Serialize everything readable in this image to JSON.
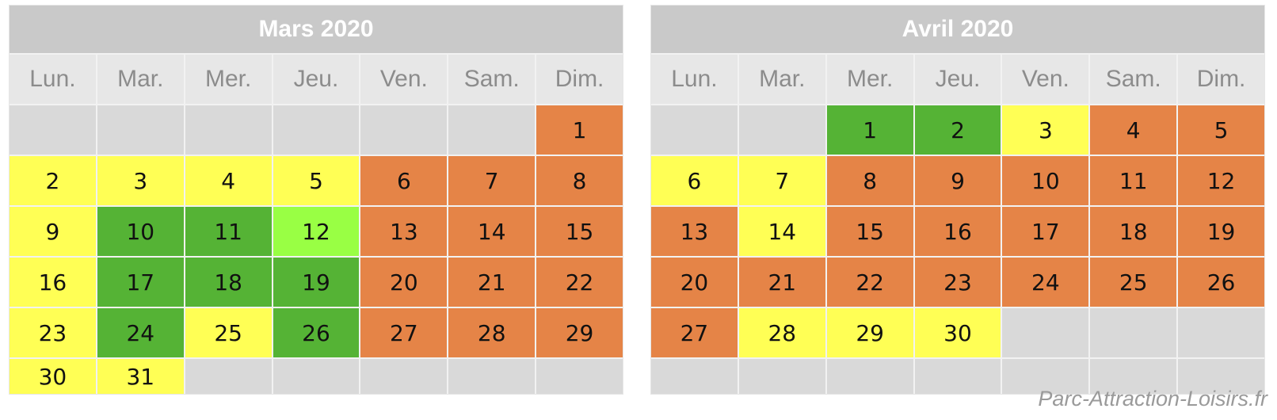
{
  "colors": {
    "empty": "#d9d9d9",
    "yellow": "#ffff55",
    "green": "#55b335",
    "light_green": "#99ff44",
    "orange": "#e58447"
  },
  "weekdays": [
    "Lun.",
    "Mar.",
    "Mer.",
    "Jeu.",
    "Ven.",
    "Sam.",
    "Dim."
  ],
  "months": [
    {
      "title": "Mars 2020",
      "offset": 6,
      "days": [
        "orange",
        "yellow",
        "yellow",
        "yellow",
        "yellow",
        "orange",
        "orange",
        "orange",
        "yellow",
        "green",
        "green",
        "light_green",
        "orange",
        "orange",
        "orange",
        "yellow",
        "green",
        "green",
        "green",
        "orange",
        "orange",
        "orange",
        "yellow",
        "green",
        "yellow",
        "green",
        "orange",
        "orange",
        "orange",
        "yellow",
        "yellow"
      ]
    },
    {
      "title": "Avril 2020",
      "offset": 2,
      "days": [
        "green",
        "green",
        "yellow",
        "orange",
        "orange",
        "yellow",
        "yellow",
        "orange",
        "orange",
        "orange",
        "orange",
        "orange",
        "orange",
        "yellow",
        "orange",
        "orange",
        "orange",
        "orange",
        "orange",
        "orange",
        "orange",
        "orange",
        "orange",
        "orange",
        "orange",
        "orange",
        "orange",
        "yellow",
        "yellow",
        "yellow"
      ]
    }
  ],
  "credit": "Parc-Attraction-Loisirs.fr"
}
